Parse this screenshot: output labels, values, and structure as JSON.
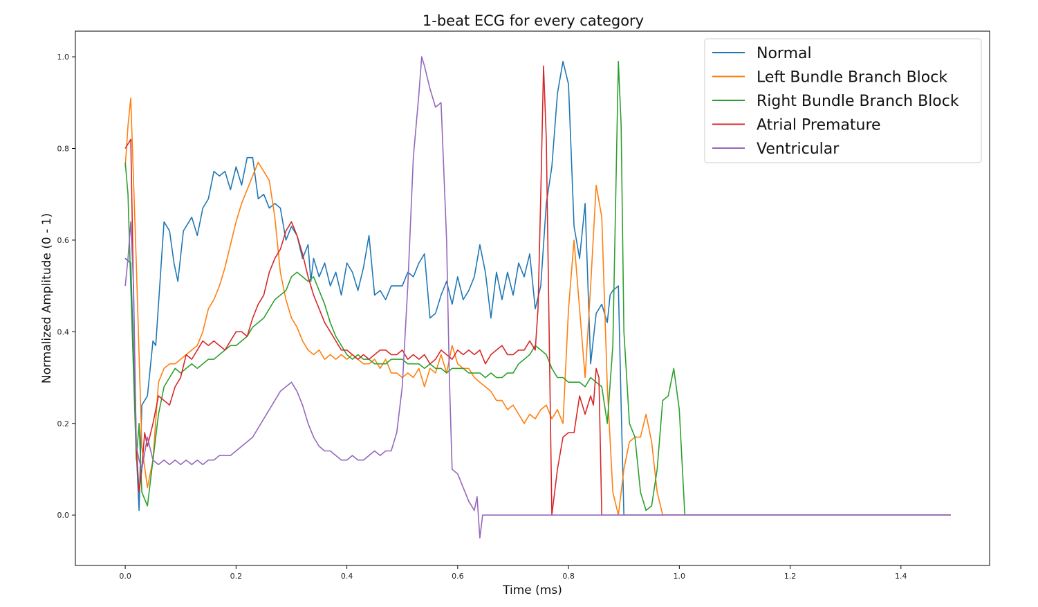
{
  "chart_data": {
    "type": "line",
    "title": "1-beat ECG for every category",
    "xlabel": "Time (ms)",
    "ylabel": "Normalized Amplitude (0 - 1)",
    "xlim": [
      -0.09,
      1.56
    ],
    "ylim": [
      -0.11,
      1.056
    ],
    "xticks": [
      0.0,
      0.2,
      0.4,
      0.6,
      0.8,
      1.0,
      1.2,
      1.4
    ],
    "xtick_labels": [
      "0.0",
      "0.2",
      "0.4",
      "0.6",
      "0.8",
      "1.0",
      "1.2",
      "1.4"
    ],
    "yticks": [
      0.0,
      0.2,
      0.4,
      0.6,
      0.8,
      1.0
    ],
    "ytick_labels": [
      "0.0",
      "0.2",
      "0.4",
      "0.6",
      "0.8",
      "1.0"
    ],
    "grid": false,
    "legend_position": "top-right",
    "series": [
      {
        "name": "Normal",
        "color": "#1f77b4",
        "x": [
          0.0,
          0.01,
          0.02,
          0.025,
          0.03,
          0.04,
          0.05,
          0.055,
          0.06,
          0.07,
          0.08,
          0.088,
          0.095,
          0.105,
          0.12,
          0.13,
          0.14,
          0.15,
          0.16,
          0.17,
          0.18,
          0.19,
          0.2,
          0.21,
          0.22,
          0.23,
          0.24,
          0.25,
          0.26,
          0.27,
          0.28,
          0.29,
          0.3,
          0.31,
          0.32,
          0.33,
          0.335,
          0.34,
          0.35,
          0.36,
          0.37,
          0.38,
          0.39,
          0.4,
          0.41,
          0.42,
          0.43,
          0.44,
          0.45,
          0.46,
          0.47,
          0.48,
          0.49,
          0.5,
          0.51,
          0.52,
          0.53,
          0.54,
          0.55,
          0.56,
          0.57,
          0.58,
          0.59,
          0.6,
          0.61,
          0.62,
          0.63,
          0.64,
          0.65,
          0.66,
          0.67,
          0.68,
          0.69,
          0.7,
          0.71,
          0.72,
          0.73,
          0.74,
          0.75,
          0.76,
          0.77,
          0.78,
          0.79,
          0.8,
          0.81,
          0.82,
          0.83,
          0.84,
          0.85,
          0.86,
          0.87,
          0.875,
          0.88,
          0.89,
          0.895,
          0.9,
          0.95,
          1.0,
          1.2,
          1.49
        ],
        "y": [
          0.56,
          0.55,
          0.14,
          0.01,
          0.24,
          0.26,
          0.38,
          0.37,
          0.46,
          0.64,
          0.62,
          0.55,
          0.51,
          0.62,
          0.65,
          0.61,
          0.67,
          0.69,
          0.75,
          0.74,
          0.75,
          0.71,
          0.76,
          0.72,
          0.78,
          0.78,
          0.69,
          0.7,
          0.67,
          0.68,
          0.67,
          0.6,
          0.63,
          0.61,
          0.56,
          0.59,
          0.51,
          0.56,
          0.52,
          0.55,
          0.5,
          0.53,
          0.48,
          0.55,
          0.53,
          0.49,
          0.54,
          0.61,
          0.48,
          0.49,
          0.47,
          0.5,
          0.5,
          0.5,
          0.53,
          0.52,
          0.55,
          0.57,
          0.43,
          0.44,
          0.48,
          0.51,
          0.46,
          0.52,
          0.47,
          0.49,
          0.52,
          0.59,
          0.53,
          0.43,
          0.53,
          0.47,
          0.53,
          0.48,
          0.55,
          0.52,
          0.57,
          0.45,
          0.5,
          0.68,
          0.76,
          0.92,
          0.99,
          0.94,
          0.63,
          0.56,
          0.68,
          0.33,
          0.44,
          0.46,
          0.42,
          0.48,
          0.49,
          0.5,
          0.24,
          0.0,
          0.0,
          0.0,
          0.0,
          0.0
        ]
      },
      {
        "name": "Left Bundle Branch Block",
        "color": "#ff7f0e",
        "x": [
          0.0,
          0.005,
          0.01,
          0.02,
          0.03,
          0.04,
          0.05,
          0.06,
          0.07,
          0.08,
          0.09,
          0.1,
          0.11,
          0.12,
          0.13,
          0.14,
          0.15,
          0.16,
          0.17,
          0.18,
          0.19,
          0.2,
          0.21,
          0.22,
          0.23,
          0.24,
          0.25,
          0.26,
          0.27,
          0.28,
          0.29,
          0.3,
          0.31,
          0.32,
          0.33,
          0.34,
          0.35,
          0.36,
          0.37,
          0.38,
          0.39,
          0.4,
          0.41,
          0.42,
          0.43,
          0.44,
          0.45,
          0.46,
          0.47,
          0.48,
          0.49,
          0.5,
          0.51,
          0.52,
          0.53,
          0.54,
          0.55,
          0.56,
          0.57,
          0.58,
          0.59,
          0.6,
          0.61,
          0.62,
          0.63,
          0.64,
          0.65,
          0.66,
          0.67,
          0.68,
          0.69,
          0.7,
          0.71,
          0.72,
          0.73,
          0.74,
          0.75,
          0.76,
          0.77,
          0.78,
          0.79,
          0.8,
          0.81,
          0.82,
          0.83,
          0.84,
          0.85,
          0.86,
          0.87,
          0.88,
          0.89,
          0.9,
          0.91,
          0.92,
          0.93,
          0.94,
          0.95,
          0.96,
          0.97,
          1.0,
          1.2,
          1.49
        ],
        "y": [
          0.76,
          0.85,
          0.91,
          0.55,
          0.15,
          0.06,
          0.12,
          0.29,
          0.32,
          0.33,
          0.33,
          0.34,
          0.35,
          0.36,
          0.37,
          0.4,
          0.45,
          0.47,
          0.5,
          0.54,
          0.59,
          0.64,
          0.68,
          0.71,
          0.74,
          0.77,
          0.75,
          0.73,
          0.65,
          0.53,
          0.47,
          0.43,
          0.41,
          0.38,
          0.36,
          0.35,
          0.36,
          0.34,
          0.35,
          0.34,
          0.35,
          0.34,
          0.35,
          0.34,
          0.33,
          0.33,
          0.34,
          0.32,
          0.34,
          0.31,
          0.31,
          0.3,
          0.31,
          0.3,
          0.32,
          0.28,
          0.32,
          0.31,
          0.35,
          0.31,
          0.37,
          0.33,
          0.32,
          0.32,
          0.3,
          0.29,
          0.28,
          0.27,
          0.25,
          0.25,
          0.23,
          0.24,
          0.22,
          0.2,
          0.22,
          0.21,
          0.23,
          0.24,
          0.21,
          0.23,
          0.2,
          0.45,
          0.6,
          0.45,
          0.3,
          0.5,
          0.72,
          0.65,
          0.28,
          0.05,
          0.0,
          0.1,
          0.16,
          0.17,
          0.17,
          0.22,
          0.16,
          0.05,
          0.0,
          0.0,
          0.0,
          0.0
        ]
      },
      {
        "name": "Right Bundle Branch Block",
        "color": "#2ca02c",
        "x": [
          0.0,
          0.005,
          0.01,
          0.02,
          0.025,
          0.03,
          0.04,
          0.05,
          0.06,
          0.07,
          0.08,
          0.09,
          0.1,
          0.11,
          0.12,
          0.13,
          0.14,
          0.15,
          0.16,
          0.17,
          0.18,
          0.19,
          0.2,
          0.21,
          0.22,
          0.23,
          0.24,
          0.25,
          0.26,
          0.27,
          0.28,
          0.29,
          0.3,
          0.31,
          0.32,
          0.33,
          0.34,
          0.35,
          0.36,
          0.37,
          0.38,
          0.39,
          0.4,
          0.41,
          0.42,
          0.43,
          0.44,
          0.45,
          0.46,
          0.47,
          0.48,
          0.49,
          0.5,
          0.51,
          0.52,
          0.53,
          0.54,
          0.55,
          0.56,
          0.57,
          0.58,
          0.59,
          0.6,
          0.61,
          0.62,
          0.63,
          0.64,
          0.65,
          0.66,
          0.67,
          0.68,
          0.69,
          0.7,
          0.71,
          0.72,
          0.73,
          0.74,
          0.75,
          0.76,
          0.77,
          0.78,
          0.79,
          0.8,
          0.81,
          0.82,
          0.83,
          0.84,
          0.85,
          0.86,
          0.87,
          0.88,
          0.89,
          0.895,
          0.9,
          0.91,
          0.92,
          0.93,
          0.94,
          0.95,
          0.96,
          0.97,
          0.98,
          0.99,
          1.0,
          1.01,
          1.2,
          1.49
        ],
        "y": [
          0.77,
          0.7,
          0.5,
          0.12,
          0.2,
          0.05,
          0.02,
          0.12,
          0.22,
          0.28,
          0.3,
          0.32,
          0.31,
          0.32,
          0.33,
          0.32,
          0.33,
          0.34,
          0.34,
          0.35,
          0.36,
          0.37,
          0.37,
          0.38,
          0.39,
          0.41,
          0.42,
          0.43,
          0.45,
          0.47,
          0.48,
          0.49,
          0.52,
          0.53,
          0.52,
          0.51,
          0.52,
          0.49,
          0.46,
          0.42,
          0.39,
          0.37,
          0.35,
          0.34,
          0.35,
          0.34,
          0.34,
          0.33,
          0.33,
          0.33,
          0.34,
          0.34,
          0.34,
          0.33,
          0.33,
          0.33,
          0.32,
          0.33,
          0.32,
          0.32,
          0.31,
          0.32,
          0.32,
          0.32,
          0.31,
          0.31,
          0.31,
          0.3,
          0.31,
          0.3,
          0.3,
          0.31,
          0.31,
          0.33,
          0.34,
          0.35,
          0.37,
          0.36,
          0.35,
          0.32,
          0.3,
          0.3,
          0.29,
          0.29,
          0.29,
          0.28,
          0.3,
          0.29,
          0.28,
          0.2,
          0.37,
          0.99,
          0.85,
          0.4,
          0.2,
          0.17,
          0.05,
          0.01,
          0.02,
          0.1,
          0.25,
          0.26,
          0.32,
          0.23,
          0.0,
          0.0,
          0.0
        ]
      },
      {
        "name": "Atrial Premature",
        "color": "#d62728",
        "x": [
          0.0,
          0.01,
          0.02,
          0.025,
          0.03,
          0.035,
          0.04,
          0.05,
          0.06,
          0.07,
          0.08,
          0.09,
          0.1,
          0.11,
          0.12,
          0.13,
          0.14,
          0.15,
          0.16,
          0.17,
          0.18,
          0.19,
          0.2,
          0.21,
          0.22,
          0.23,
          0.24,
          0.25,
          0.26,
          0.27,
          0.28,
          0.29,
          0.3,
          0.31,
          0.32,
          0.33,
          0.34,
          0.35,
          0.36,
          0.37,
          0.38,
          0.39,
          0.4,
          0.41,
          0.42,
          0.43,
          0.44,
          0.45,
          0.46,
          0.47,
          0.48,
          0.49,
          0.5,
          0.51,
          0.52,
          0.53,
          0.54,
          0.55,
          0.56,
          0.57,
          0.58,
          0.59,
          0.6,
          0.61,
          0.62,
          0.63,
          0.64,
          0.65,
          0.66,
          0.67,
          0.68,
          0.69,
          0.7,
          0.71,
          0.72,
          0.73,
          0.74,
          0.745,
          0.75,
          0.755,
          0.76,
          0.77,
          0.78,
          0.79,
          0.8,
          0.81,
          0.82,
          0.83,
          0.84,
          0.845,
          0.85,
          0.855,
          0.86,
          0.9,
          1.0,
          1.2,
          1.49
        ],
        "y": [
          0.8,
          0.82,
          0.15,
          0.05,
          0.1,
          0.18,
          0.15,
          0.2,
          0.26,
          0.25,
          0.24,
          0.28,
          0.3,
          0.35,
          0.34,
          0.36,
          0.38,
          0.37,
          0.38,
          0.37,
          0.36,
          0.38,
          0.4,
          0.4,
          0.39,
          0.43,
          0.46,
          0.48,
          0.53,
          0.56,
          0.58,
          0.62,
          0.64,
          0.61,
          0.57,
          0.52,
          0.48,
          0.45,
          0.42,
          0.4,
          0.38,
          0.36,
          0.36,
          0.35,
          0.34,
          0.35,
          0.34,
          0.35,
          0.36,
          0.36,
          0.35,
          0.35,
          0.36,
          0.34,
          0.35,
          0.34,
          0.35,
          0.33,
          0.34,
          0.36,
          0.35,
          0.34,
          0.36,
          0.35,
          0.36,
          0.35,
          0.36,
          0.33,
          0.35,
          0.36,
          0.37,
          0.35,
          0.35,
          0.36,
          0.36,
          0.38,
          0.36,
          0.45,
          0.7,
          0.98,
          0.82,
          0.0,
          0.1,
          0.17,
          0.18,
          0.18,
          0.26,
          0.22,
          0.26,
          0.24,
          0.32,
          0.3,
          0.0,
          0.0,
          0.0,
          0.0,
          0.0
        ]
      },
      {
        "name": "Ventricular",
        "color": "#9467bd",
        "x": [
          0.0,
          0.005,
          0.01,
          0.015,
          0.02,
          0.025,
          0.03,
          0.04,
          0.05,
          0.06,
          0.07,
          0.08,
          0.09,
          0.1,
          0.11,
          0.12,
          0.13,
          0.14,
          0.15,
          0.16,
          0.17,
          0.18,
          0.19,
          0.2,
          0.21,
          0.22,
          0.23,
          0.24,
          0.25,
          0.26,
          0.27,
          0.28,
          0.29,
          0.3,
          0.31,
          0.32,
          0.33,
          0.34,
          0.35,
          0.36,
          0.37,
          0.38,
          0.39,
          0.4,
          0.41,
          0.42,
          0.43,
          0.44,
          0.45,
          0.46,
          0.47,
          0.48,
          0.49,
          0.5,
          0.51,
          0.52,
          0.53,
          0.535,
          0.54,
          0.55,
          0.56,
          0.57,
          0.58,
          0.585,
          0.59,
          0.6,
          0.61,
          0.62,
          0.63,
          0.635,
          0.64,
          0.645,
          0.65,
          0.7,
          0.8,
          1.0,
          1.2,
          1.49
        ],
        "y": [
          0.5,
          0.56,
          0.64,
          0.5,
          0.15,
          0.12,
          0.1,
          0.17,
          0.12,
          0.11,
          0.12,
          0.11,
          0.12,
          0.11,
          0.12,
          0.11,
          0.12,
          0.11,
          0.12,
          0.12,
          0.13,
          0.13,
          0.13,
          0.14,
          0.15,
          0.16,
          0.17,
          0.19,
          0.21,
          0.23,
          0.25,
          0.27,
          0.28,
          0.29,
          0.27,
          0.24,
          0.2,
          0.17,
          0.15,
          0.14,
          0.14,
          0.13,
          0.12,
          0.12,
          0.13,
          0.12,
          0.12,
          0.13,
          0.14,
          0.13,
          0.14,
          0.14,
          0.18,
          0.28,
          0.5,
          0.78,
          0.92,
          1.0,
          0.98,
          0.93,
          0.89,
          0.9,
          0.6,
          0.3,
          0.1,
          0.09,
          0.06,
          0.03,
          0.01,
          0.04,
          -0.05,
          0.0,
          0.0,
          0.0,
          0.0,
          0.0,
          0.0,
          0.0
        ]
      }
    ]
  }
}
